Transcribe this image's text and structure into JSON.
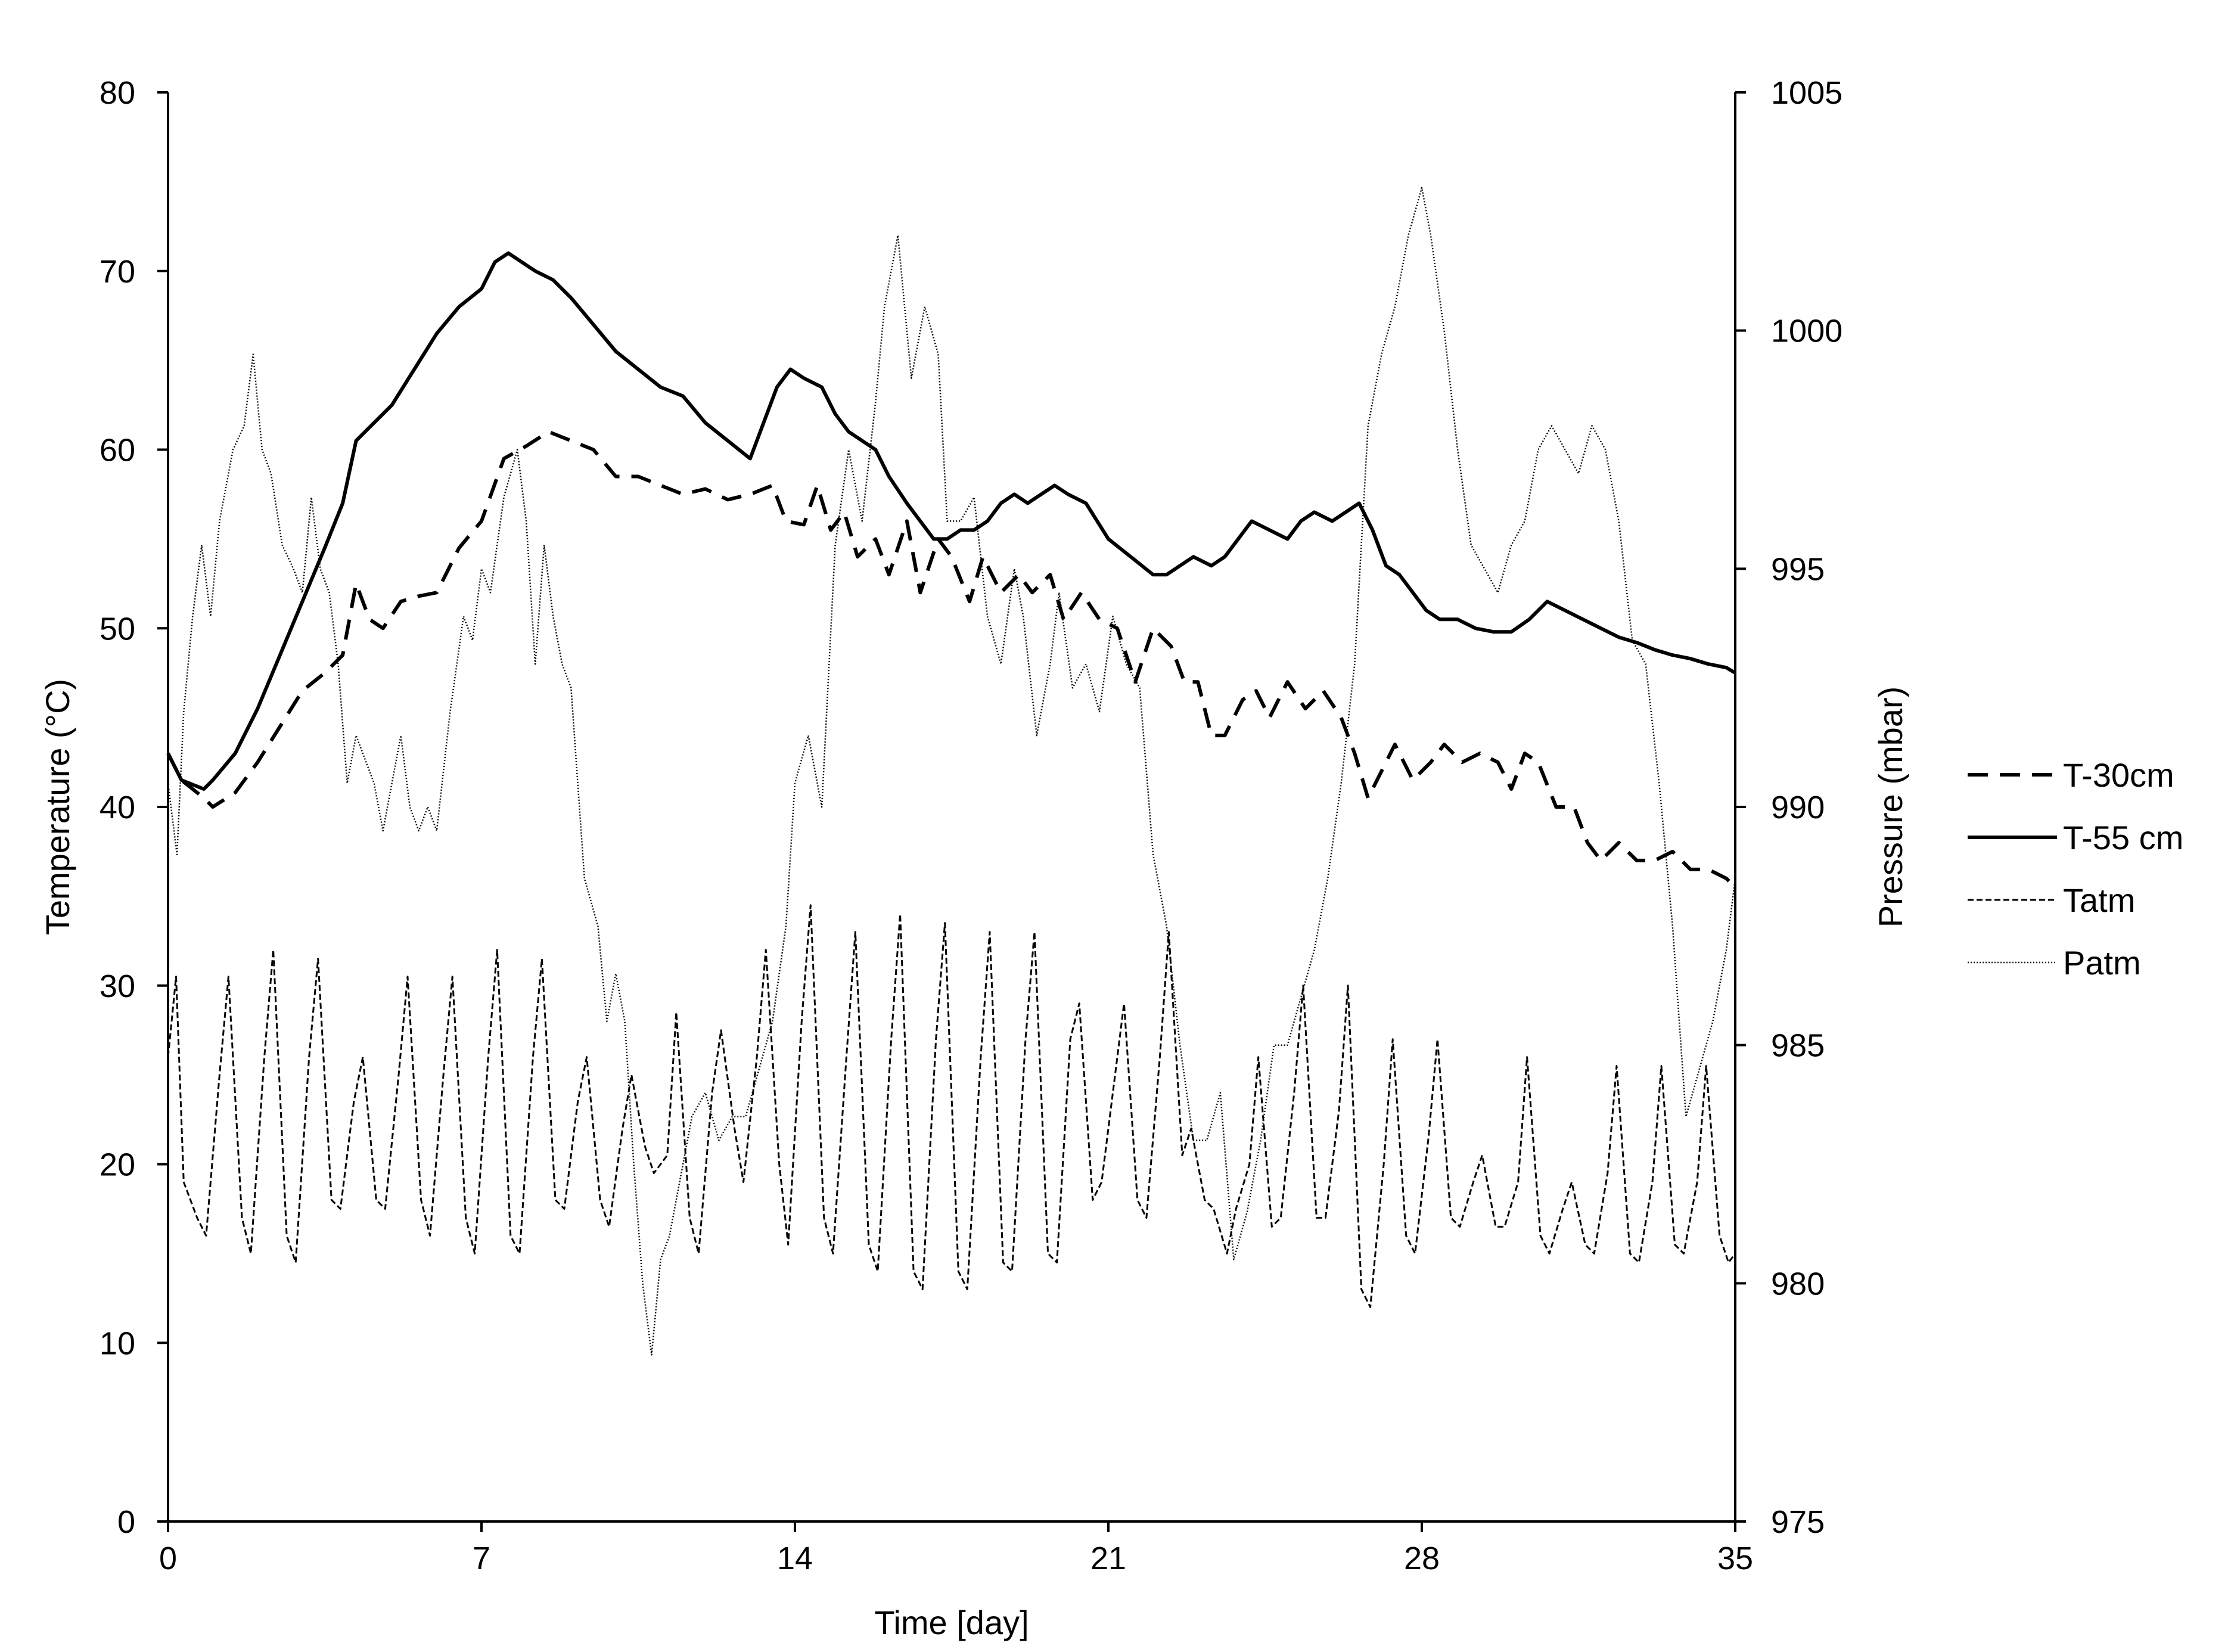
{
  "chart_data": {
    "type": "line",
    "title": "",
    "xlabel": "Time [day]",
    "ylabel": "Temperature (°C)",
    "y2label": "Pressure (mbar)",
    "xlim": [
      0,
      35
    ],
    "ylim": [
      0,
      80
    ],
    "y2lim": [
      975,
      1005
    ],
    "xticks": [
      0,
      7,
      14,
      21,
      28,
      35
    ],
    "yticks": [
      0,
      10,
      20,
      30,
      40,
      50,
      60,
      70,
      80
    ],
    "y2ticks": [
      975,
      980,
      985,
      990,
      995,
      1000,
      1005
    ],
    "grid": false,
    "legend_position": "right",
    "colors": {
      "line": "#000000",
      "background": "#ffffff"
    },
    "series": [
      {
        "name": "T-30cm",
        "axis": "left",
        "style": "long-dash",
        "x": [
          0,
          0.3,
          0.8,
          1.0,
          1.5,
          2.0,
          2.5,
          3.0,
          3.5,
          3.9,
          4.2,
          4.5,
          4.8,
          5.2,
          5.6,
          6.0,
          6.5,
          7.0,
          7.5,
          8.0,
          8.5,
          9.0,
          9.5,
          10.0,
          10.5,
          11.0,
          11.5,
          12.0,
          12.5,
          13.0,
          13.5,
          13.8,
          14.2,
          14.5,
          14.8,
          15.1,
          15.4,
          15.8,
          16.1,
          16.5,
          16.8,
          17.2,
          17.5,
          17.9,
          18.2,
          18.6,
          19.0,
          19.3,
          19.7,
          20.0,
          20.4,
          20.8,
          21.2,
          21.6,
          22.0,
          22.4,
          22.7,
          23.0,
          23.3,
          23.6,
          24.0,
          24.3,
          24.6,
          25.0,
          25.4,
          25.8,
          26.2,
          26.5,
          26.8,
          27.1,
          27.4,
          27.8,
          28.2,
          28.5,
          28.9,
          29.3,
          29.7,
          30.0,
          30.3,
          30.6,
          31.0,
          31.4,
          31.7,
          32.0,
          32.4,
          32.8,
          33.2,
          33.6,
          34.0,
          34.4,
          34.8,
          35.0
        ],
        "y": [
          43.0,
          41.5,
          40.5,
          40.0,
          40.8,
          42.5,
          44.5,
          46.5,
          47.5,
          48.5,
          52.5,
          50.5,
          50.0,
          51.5,
          51.8,
          52.0,
          54.5,
          56.0,
          59.5,
          60.2,
          61.0,
          60.5,
          60.0,
          58.5,
          58.5,
          58.0,
          57.5,
          57.8,
          57.2,
          57.5,
          58.0,
          56.0,
          55.8,
          58.0,
          55.5,
          56.5,
          54.0,
          55.0,
          53.0,
          56.0,
          52.0,
          55.0,
          54.0,
          51.5,
          54.0,
          52.0,
          53.0,
          52.0,
          53.0,
          50.5,
          52.0,
          50.5,
          50.0,
          47.0,
          50.0,
          49.0,
          47.0,
          47.0,
          44.0,
          44.0,
          46.0,
          46.5,
          45.0,
          47.0,
          45.5,
          46.5,
          45.0,
          43.0,
          40.5,
          42.0,
          43.5,
          41.5,
          42.5,
          43.5,
          42.5,
          43.0,
          42.5,
          41.0,
          43.0,
          42.5,
          40.0,
          40.0,
          38.0,
          37.0,
          38.0,
          37.0,
          37.0,
          37.5,
          36.5,
          36.5,
          36.0,
          35.5
        ]
      },
      {
        "name": "T-55 cm",
        "axis": "left",
        "style": "solid",
        "x": [
          0,
          0.3,
          0.8,
          1.0,
          1.5,
          2.0,
          2.5,
          3.0,
          3.5,
          3.9,
          4.2,
          4.6,
          5.0,
          5.5,
          6.0,
          6.5,
          7.0,
          7.3,
          7.6,
          7.9,
          8.2,
          8.6,
          9.0,
          9.5,
          10.0,
          10.5,
          11.0,
          11.5,
          12.0,
          12.5,
          13.0,
          13.3,
          13.6,
          13.9,
          14.2,
          14.6,
          14.9,
          15.2,
          15.5,
          15.8,
          16.1,
          16.5,
          16.8,
          17.1,
          17.4,
          17.7,
          18.0,
          18.3,
          18.6,
          18.9,
          19.2,
          19.5,
          19.8,
          20.1,
          20.5,
          21.0,
          21.5,
          22.0,
          22.3,
          22.6,
          22.9,
          23.3,
          23.6,
          23.9,
          24.2,
          24.6,
          25.0,
          25.3,
          25.6,
          26.0,
          26.3,
          26.6,
          26.9,
          27.2,
          27.5,
          27.8,
          28.1,
          28.4,
          28.8,
          29.2,
          29.6,
          30.0,
          30.4,
          30.8,
          31.2,
          31.6,
          32.0,
          32.4,
          32.8,
          33.2,
          33.6,
          34.0,
          34.4,
          34.8,
          35.0
        ],
        "y": [
          43.0,
          41.5,
          41.0,
          41.5,
          43.0,
          45.5,
          48.5,
          51.5,
          54.5,
          57.0,
          60.5,
          61.5,
          62.5,
          64.5,
          66.5,
          68.0,
          69.0,
          70.5,
          71.0,
          70.5,
          70.0,
          69.5,
          68.5,
          67.0,
          65.5,
          64.5,
          63.5,
          63.0,
          61.5,
          60.5,
          59.5,
          61.5,
          63.5,
          64.5,
          64.0,
          63.5,
          62.0,
          61.0,
          60.5,
          60.0,
          58.5,
          57.0,
          56.0,
          55.0,
          55.0,
          55.5,
          55.5,
          56.0,
          57.0,
          57.5,
          57.0,
          57.5,
          58.0,
          57.5,
          57.0,
          55.0,
          54.0,
          53.0,
          53.0,
          53.5,
          54.0,
          53.5,
          54.0,
          55.0,
          56.0,
          55.5,
          55.0,
          56.0,
          56.5,
          56.0,
          56.5,
          57.0,
          55.5,
          53.5,
          53.0,
          52.0,
          51.0,
          50.5,
          50.5,
          50.0,
          49.8,
          49.8,
          50.5,
          51.5,
          51.0,
          50.5,
          50.0,
          49.5,
          49.2,
          48.8,
          48.5,
          48.3,
          48.0,
          47.8,
          47.5
        ]
      },
      {
        "name": "Tatm",
        "axis": "left",
        "style": "short-dash",
        "x": [
          0,
          0.18,
          0.35,
          0.65,
          0.85,
          1.15,
          1.35,
          1.65,
          1.85,
          2.15,
          2.35,
          2.65,
          2.85,
          3.15,
          3.35,
          3.65,
          3.85,
          4.15,
          4.35,
          4.65,
          4.85,
          5.15,
          5.35,
          5.65,
          5.85,
          6.15,
          6.35,
          6.65,
          6.85,
          7.15,
          7.35,
          7.65,
          7.85,
          8.15,
          8.35,
          8.65,
          8.85,
          9.15,
          9.35,
          9.65,
          9.85,
          10.15,
          10.35,
          10.65,
          10.85,
          11.15,
          11.35,
          11.65,
          11.85,
          12.15,
          12.35,
          12.65,
          12.85,
          13.15,
          13.35,
          13.65,
          13.85,
          14.15,
          14.35,
          14.65,
          14.85,
          15.15,
          15.35,
          15.65,
          15.85,
          16.15,
          16.35,
          16.65,
          16.85,
          17.15,
          17.35,
          17.65,
          17.85,
          18.15,
          18.35,
          18.65,
          18.85,
          19.15,
          19.35,
          19.65,
          19.85,
          20.15,
          20.35,
          20.65,
          20.85,
          21.15,
          21.35,
          21.65,
          21.85,
          22.15,
          22.35,
          22.65,
          22.85,
          23.15,
          23.35,
          23.65,
          23.85,
          24.15,
          24.35,
          24.65,
          24.85,
          25.15,
          25.35,
          25.65,
          25.85,
          26.15,
          26.35,
          26.65,
          26.85,
          27.15,
          27.35,
          27.65,
          27.85,
          28.15,
          28.35,
          28.65,
          28.85,
          29.15,
          29.35,
          29.65,
          29.85,
          30.15,
          30.35,
          30.65,
          30.85,
          31.15,
          31.35,
          31.65,
          31.85,
          32.15,
          32.35,
          32.65,
          32.85,
          33.15,
          33.35,
          33.65,
          33.85,
          34.15,
          34.35,
          34.65,
          34.85,
          35.0
        ],
        "y": [
          26.0,
          30.5,
          19.0,
          17.0,
          16.0,
          25.0,
          30.5,
          17.0,
          15.0,
          26.0,
          32.0,
          16.0,
          14.5,
          26.0,
          31.5,
          18.0,
          17.5,
          23.5,
          26.0,
          18.0,
          17.5,
          25.0,
          30.5,
          18.0,
          16.0,
          25.0,
          30.5,
          17.0,
          15.0,
          26.0,
          32.0,
          16.0,
          15.0,
          26.0,
          31.5,
          18.0,
          17.5,
          23.5,
          26.0,
          18.0,
          16.5,
          22.0,
          25.0,
          21.0,
          19.5,
          20.5,
          28.5,
          17.0,
          15.0,
          24.0,
          27.5,
          22.0,
          19.0,
          26.0,
          32.0,
          20.0,
          15.5,
          28.0,
          34.5,
          17.0,
          15.0,
          26.0,
          33.0,
          15.5,
          14.0,
          27.0,
          34.0,
          14.0,
          13.0,
          27.0,
          33.5,
          14.0,
          13.0,
          26.0,
          33.0,
          14.5,
          14.0,
          27.0,
          33.0,
          15.0,
          14.5,
          27.0,
          29.0,
          18.0,
          19.0,
          25.0,
          29.0,
          18.0,
          17.0,
          26.0,
          33.0,
          20.5,
          22.0,
          18.0,
          17.5,
          15.0,
          17.5,
          20.0,
          26.0,
          16.5,
          17.0,
          24.0,
          30.0,
          17.0,
          17.0,
          23.0,
          30.0,
          13.0,
          12.0,
          20.0,
          27.0,
          16.0,
          15.0,
          21.5,
          27.0,
          17.0,
          16.5,
          19.0,
          20.5,
          16.5,
          16.5,
          19.0,
          26.0,
          16.0,
          15.0,
          17.5,
          19.0,
          15.5,
          15.0,
          19.5,
          25.5,
          15.0,
          14.5,
          19.0,
          25.5,
          15.5,
          15.0,
          19.0,
          25.5,
          16.0,
          14.5,
          15.0
        ]
      },
      {
        "name": "Patm",
        "axis": "right",
        "style": "dotted",
        "x": [
          0,
          0.2,
          0.35,
          0.55,
          0.75,
          0.95,
          1.15,
          1.45,
          1.7,
          1.9,
          2.1,
          2.3,
          2.55,
          2.8,
          3.0,
          3.2,
          3.4,
          3.6,
          3.8,
          4.0,
          4.2,
          4.4,
          4.6,
          4.8,
          5.0,
          5.2,
          5.4,
          5.6,
          5.8,
          6.0,
          6.3,
          6.6,
          6.8,
          7.0,
          7.2,
          7.5,
          7.8,
          8.0,
          8.2,
          8.4,
          8.6,
          8.8,
          9.0,
          9.3,
          9.6,
          9.8,
          10.0,
          10.2,
          10.4,
          10.6,
          10.8,
          11.0,
          11.2,
          11.5,
          11.7,
          12.0,
          12.3,
          12.6,
          12.9,
          13.2,
          13.5,
          13.8,
          14.0,
          14.3,
          14.6,
          14.9,
          15.2,
          15.5,
          15.8,
          16.0,
          16.3,
          16.6,
          16.9,
          17.2,
          17.4,
          17.7,
          18.0,
          18.3,
          18.6,
          18.9,
          19.1,
          19.4,
          19.7,
          19.9,
          20.2,
          20.5,
          20.8,
          21.1,
          21.4,
          21.7,
          22.0,
          22.3,
          22.6,
          22.9,
          23.2,
          23.5,
          23.8,
          24.1,
          24.4,
          24.7,
          25.0,
          25.3,
          25.6,
          25.9,
          26.2,
          26.5,
          26.8,
          27.1,
          27.4,
          27.7,
          28.0,
          28.2,
          28.5,
          28.8,
          29.1,
          29.4,
          29.7,
          30.0,
          30.3,
          30.6,
          30.9,
          31.2,
          31.5,
          31.8,
          32.1,
          32.4,
          32.7,
          33.0,
          33.3,
          33.6,
          33.9,
          34.2,
          34.5,
          34.8,
          35.0
        ],
        "y": [
          990.5,
          989.0,
          992.0,
          994.0,
          995.5,
          994.0,
          996.0,
          997.5,
          998.0,
          999.5,
          997.5,
          997.0,
          995.5,
          995.0,
          994.5,
          996.5,
          995.0,
          994.5,
          993.0,
          990.5,
          991.5,
          991.0,
          990.5,
          989.5,
          990.5,
          991.5,
          990.0,
          989.5,
          990.0,
          989.5,
          992.0,
          994.0,
          993.5,
          995.0,
          994.5,
          996.5,
          997.5,
          996.0,
          993.0,
          995.5,
          994.0,
          993.0,
          992.5,
          988.5,
          987.5,
          985.5,
          986.5,
          985.5,
          982.5,
          980.0,
          978.5,
          980.5,
          981.0,
          982.5,
          983.5,
          984.0,
          983.0,
          983.5,
          983.5,
          984.5,
          985.5,
          987.5,
          990.5,
          991.5,
          990.0,
          995.5,
          997.5,
          996.0,
          998.5,
          1000.5,
          1002.0,
          999.0,
          1000.5,
          999.5,
          996.0,
          996.0,
          996.5,
          994.0,
          993.0,
          995.0,
          994.0,
          991.5,
          993.0,
          994.5,
          992.5,
          993.0,
          992.0,
          994.0,
          993.0,
          992.5,
          989.0,
          987.5,
          985.0,
          983.0,
          983.0,
          984.0,
          980.5,
          981.5,
          983.0,
          985.0,
          985.0,
          986.0,
          987.0,
          988.5,
          990.5,
          993.0,
          998.0,
          999.5,
          1000.5,
          1002.0,
          1003.0,
          1002.0,
          1000.0,
          997.5,
          995.5,
          995.0,
          994.5,
          995.5,
          996.0,
          997.5,
          998.0,
          997.5,
          997.0,
          998.0,
          997.5,
          996.0,
          993.5,
          993.0,
          990.5,
          987.5,
          983.5,
          984.5,
          985.5,
          987.0,
          988.5
        ]
      }
    ]
  }
}
